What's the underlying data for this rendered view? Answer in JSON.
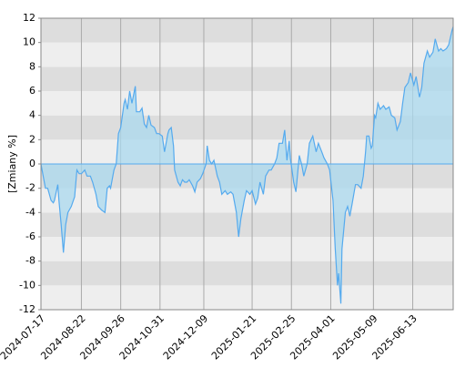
{
  "chart_data": {
    "type": "area",
    "y_label": "[Zmiany %]",
    "x": [
      "2024-07-17",
      "2024-07-19",
      "2024-07-21",
      "2024-07-23",
      "2024-07-26",
      "2024-07-28",
      "2024-07-29",
      "2024-08-01",
      "2024-08-02",
      "2024-08-04",
      "2024-08-06",
      "2024-08-08",
      "2024-08-10",
      "2024-08-13",
      "2024-08-16",
      "2024-08-18",
      "2024-08-20",
      "2024-08-22",
      "2024-08-25",
      "2024-08-27",
      "2024-08-30",
      "2024-09-01",
      "2024-09-04",
      "2024-09-06",
      "2024-09-09",
      "2024-09-12",
      "2024-09-14",
      "2024-09-16",
      "2024-09-17",
      "2024-09-20",
      "2024-09-22",
      "2024-09-24",
      "2024-09-26",
      "2024-09-29",
      "2024-09-30",
      "2024-10-02",
      "2024-10-04",
      "2024-10-06",
      "2024-10-09",
      "2024-10-10",
      "2024-10-13",
      "2024-10-15",
      "2024-10-17",
      "2024-10-19",
      "2024-10-21",
      "2024-10-23",
      "2024-10-26",
      "2024-10-28",
      "2024-10-30",
      "2024-11-02",
      "2024-11-04",
      "2024-11-07",
      "2024-11-08",
      "2024-11-10",
      "2024-11-12",
      "2024-11-13",
      "2024-11-16",
      "2024-11-18",
      "2024-11-20",
      "2024-11-22",
      "2024-11-24",
      "2024-11-26",
      "2024-11-29",
      "2024-12-01",
      "2024-12-03",
      "2024-12-06",
      "2024-12-08",
      "2024-12-11",
      "2024-12-12",
      "2024-12-14",
      "2024-12-16",
      "2024-12-18",
      "2024-12-21",
      "2024-12-23",
      "2024-12-25",
      "2024-12-28",
      "2024-12-30",
      "2025-01-02",
      "2025-01-04",
      "2025-01-07",
      "2025-01-09",
      "2025-01-11",
      "2025-01-14",
      "2025-01-16",
      "2025-01-19",
      "2025-01-21",
      "2025-01-24",
      "2025-01-26",
      "2025-01-28",
      "2025-01-31",
      "2025-02-02",
      "2025-02-05",
      "2025-02-07",
      "2025-02-10",
      "2025-02-12",
      "2025-02-14",
      "2025-02-17",
      "2025-02-19",
      "2025-02-21",
      "2025-02-23",
      "2025-02-24",
      "2025-02-27",
      "2025-03-01",
      "2025-03-04",
      "2025-03-06",
      "2025-03-08",
      "2025-03-11",
      "2025-03-13",
      "2025-03-16",
      "2025-03-19",
      "2025-03-21",
      "2025-03-24",
      "2025-03-26",
      "2025-03-29",
      "2025-03-31",
      "2025-04-03",
      "2025-04-05",
      "2025-04-07",
      "2025-04-08",
      "2025-04-10",
      "2025-04-11",
      "2025-04-14",
      "2025-04-16",
      "2025-04-18",
      "2025-04-20",
      "2025-04-23",
      "2025-04-25",
      "2025-04-28",
      "2025-04-30",
      "2025-05-02",
      "2025-05-03",
      "2025-05-05",
      "2025-05-07",
      "2025-05-08",
      "2025-05-10",
      "2025-05-11",
      "2025-05-13",
      "2025-05-15",
      "2025-05-18",
      "2025-05-20",
      "2025-05-23",
      "2025-05-25",
      "2025-05-28",
      "2025-05-30",
      "2025-06-02",
      "2025-06-04",
      "2025-06-06",
      "2025-06-09",
      "2025-06-11",
      "2025-06-14",
      "2025-06-16",
      "2025-06-19",
      "2025-06-21",
      "2025-06-23",
      "2025-06-26",
      "2025-06-28",
      "2025-07-01",
      "2025-07-03",
      "2025-07-06",
      "2025-07-08",
      "2025-07-10",
      "2025-07-13",
      "2025-07-15",
      "2025-07-18",
      "2025-07-19"
    ],
    "values": [
      0,
      -1,
      -2,
      -2,
      -3,
      -3.2,
      -3,
      -1.7,
      -3,
      -5,
      -7.3,
      -5,
      -4,
      -3.5,
      -2.7,
      -0.5,
      -0.8,
      -0.8,
      -0.5,
      -1,
      -1,
      -1.5,
      -2.5,
      -3.5,
      -3.8,
      -4,
      -2,
      -1.8,
      -2,
      -0.5,
      0,
      2.5,
      3,
      5,
      5.3,
      4.5,
      6,
      5,
      6.4,
      4.3,
      4.3,
      4.6,
      3.3,
      3,
      4,
      3.2,
      3,
      2.5,
      2.5,
      2.3,
      1,
      2.5,
      2.8,
      3,
      1.5,
      -0.5,
      -1.5,
      -1.8,
      -1.3,
      -1.5,
      -1.5,
      -1.3,
      -1.8,
      -2.3,
      -1.5,
      -1.2,
      -0.8,
      0,
      1.5,
      0.3,
      0,
      0.3,
      -1,
      -1.5,
      -2.5,
      -2.2,
      -2.5,
      -2.3,
      -2.5,
      -4,
      -6,
      -4.5,
      -3,
      -2.2,
      -2.5,
      -2.2,
      -3.3,
      -2.8,
      -1.5,
      -2.5,
      -1,
      -0.5,
      -0.5,
      0,
      0.5,
      1.7,
      1.7,
      2.8,
      0.3,
      1.9,
      0.5,
      -1.5,
      -2.3,
      0.7,
      0,
      -1,
      0,
      1.7,
      2.3,
      1,
      1.7,
      1,
      0.5,
      0,
      -0.5,
      -3,
      -7,
      -10,
      -9,
      -11.5,
      -7,
      -4,
      -3.5,
      -4.3,
      -3.3,
      -1.7,
      -1.7,
      -2,
      -1,
      1,
      2.3,
      2.3,
      1.3,
      1.5,
      4,
      3.8,
      5,
      4.5,
      4.8,
      4.5,
      4.7,
      4,
      3.8,
      2.8,
      3.5,
      5,
      6.3,
      6.7,
      7.5,
      6.5,
      7.2,
      5.5,
      6.3,
      8.3,
      9.3,
      8.8,
      9.2,
      10.3,
      9.3,
      9.5,
      9.3,
      9.5,
      9.8,
      11,
      11.3
    ],
    "color": "#55aaee",
    "fill_color": "#aad8ee",
    "xlim": [
      "2024-07-17",
      "2025-07-19"
    ],
    "xticks": [
      "2024-07-17",
      "2024-08-22",
      "2024-09-26",
      "2024-10-31",
      "2024-12-09",
      "2025-01-21",
      "2025-02-25",
      "2025-04-01",
      "2025-05-09",
      "2025-06-13"
    ],
    "ylim": [
      -12,
      12
    ],
    "yticks": [
      -12,
      -10,
      -8,
      -6,
      -4,
      -2,
      0,
      2,
      4,
      6,
      8,
      10,
      12
    ],
    "grid": true
  }
}
